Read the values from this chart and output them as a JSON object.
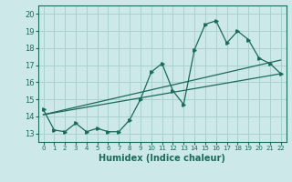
{
  "xlabel": "Humidex (Indice chaleur)",
  "ylabel": "",
  "xlim": [
    -0.5,
    22.5
  ],
  "ylim": [
    12.5,
    20.5
  ],
  "yticks": [
    13,
    14,
    15,
    16,
    17,
    18,
    19,
    20
  ],
  "xticks": [
    0,
    1,
    2,
    3,
    4,
    5,
    6,
    7,
    8,
    9,
    10,
    11,
    12,
    13,
    14,
    15,
    16,
    17,
    18,
    19,
    20,
    21,
    22
  ],
  "bg_color": "#cce8e8",
  "grid_color": "#aad0d0",
  "line_color": "#1a6b5a",
  "line1_x": [
    0,
    1,
    2,
    3,
    4,
    5,
    6,
    7,
    8,
    9,
    10,
    11,
    12,
    13,
    14,
    15,
    16,
    17,
    18,
    19,
    20,
    21,
    22
  ],
  "line1_y": [
    14.4,
    13.2,
    13.1,
    13.6,
    13.1,
    13.3,
    13.1,
    13.1,
    13.8,
    15.0,
    16.6,
    17.1,
    15.5,
    14.7,
    17.9,
    19.4,
    19.6,
    18.3,
    19.0,
    18.5,
    17.4,
    17.1,
    16.5
  ],
  "line2_x": [
    0,
    22
  ],
  "line2_y": [
    14.1,
    16.5
  ],
  "line3_x": [
    0,
    22
  ],
  "line3_y": [
    14.1,
    17.3
  ]
}
